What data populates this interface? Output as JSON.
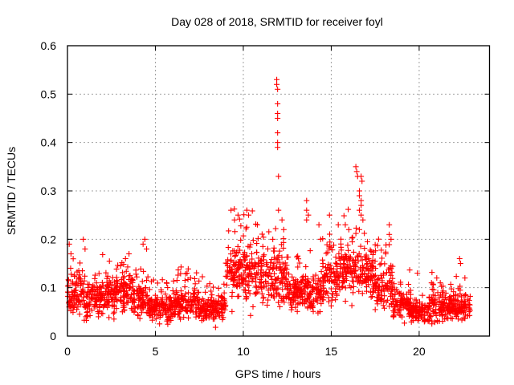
{
  "chart_data": {
    "type": "scatter",
    "title": "Day 028 of 2018, SRMTID for receiver foyl",
    "xlabel": "GPS time / hours",
    "ylabel": "SRMTID / TECUs",
    "xlim": [
      0,
      24
    ],
    "ylim": [
      0,
      0.6
    ],
    "xticks": [
      0,
      5,
      10,
      15,
      20
    ],
    "xtick_labels": [
      "0",
      "5",
      "10",
      "15",
      "20"
    ],
    "yticks": [
      0,
      0.1,
      0.2,
      0.3,
      0.4,
      0.5,
      0.6
    ],
    "ytick_labels": [
      "0",
      "0.1",
      "0.2",
      "0.3",
      "0.4",
      "0.5",
      "0.6"
    ],
    "grid": true,
    "marker": "+",
    "series": [
      {
        "name": "SRMTID",
        "color": "#ff0000",
        "x_range": [
          0,
          22.9
        ],
        "segments": [
          {
            "from": 0.0,
            "to": 1.0,
            "median": 0.085,
            "spread": 0.04
          },
          {
            "from": 1.0,
            "to": 2.0,
            "median": 0.075,
            "spread": 0.035
          },
          {
            "from": 2.0,
            "to": 3.0,
            "median": 0.085,
            "spread": 0.035
          },
          {
            "from": 3.0,
            "to": 4.0,
            "median": 0.09,
            "spread": 0.035
          },
          {
            "from": 4.0,
            "to": 4.6,
            "median": 0.075,
            "spread": 0.03
          },
          {
            "from": 4.6,
            "to": 6.0,
            "median": 0.06,
            "spread": 0.025
          },
          {
            "from": 6.0,
            "to": 7.5,
            "median": 0.07,
            "spread": 0.03
          },
          {
            "from": 7.5,
            "to": 9.0,
            "median": 0.06,
            "spread": 0.025
          },
          {
            "from": 9.0,
            "to": 10.0,
            "median": 0.13,
            "spread": 0.05
          },
          {
            "from": 10.0,
            "to": 11.0,
            "median": 0.13,
            "spread": 0.05
          },
          {
            "from": 11.0,
            "to": 12.5,
            "median": 0.12,
            "spread": 0.05
          },
          {
            "from": 12.5,
            "to": 13.5,
            "median": 0.09,
            "spread": 0.035
          },
          {
            "from": 13.5,
            "to": 14.5,
            "median": 0.09,
            "spread": 0.035
          },
          {
            "from": 14.5,
            "to": 15.5,
            "median": 0.12,
            "spread": 0.045
          },
          {
            "from": 15.5,
            "to": 16.5,
            "median": 0.14,
            "spread": 0.05
          },
          {
            "from": 16.5,
            "to": 17.5,
            "median": 0.13,
            "spread": 0.045
          },
          {
            "from": 17.5,
            "to": 18.5,
            "median": 0.1,
            "spread": 0.04
          },
          {
            "from": 18.5,
            "to": 19.5,
            "median": 0.065,
            "spread": 0.025
          },
          {
            "from": 19.5,
            "to": 20.5,
            "median": 0.05,
            "spread": 0.02
          },
          {
            "from": 20.5,
            "to": 21.5,
            "median": 0.06,
            "spread": 0.025
          },
          {
            "from": 21.5,
            "to": 22.9,
            "median": 0.06,
            "spread": 0.025
          }
        ],
        "spikes": [
          [
            0.1,
            0.19
          ],
          [
            0.2,
            0.17
          ],
          [
            0.9,
            0.2
          ],
          [
            1.0,
            0.18
          ],
          [
            3.3,
            0.16
          ],
          [
            3.5,
            0.17
          ],
          [
            4.3,
            0.19
          ],
          [
            4.4,
            0.2
          ],
          [
            4.5,
            0.18
          ],
          [
            6.8,
            0.13
          ],
          [
            7.0,
            0.12
          ],
          [
            9.3,
            0.26
          ],
          [
            9.5,
            0.24
          ],
          [
            9.7,
            0.25
          ],
          [
            10.2,
            0.26
          ],
          [
            10.3,
            0.25
          ],
          [
            10.8,
            0.23
          ],
          [
            11.9,
            0.53
          ],
          [
            11.9,
            0.52
          ],
          [
            11.95,
            0.51
          ],
          [
            11.95,
            0.48
          ],
          [
            11.95,
            0.46
          ],
          [
            11.95,
            0.45
          ],
          [
            11.95,
            0.42
          ],
          [
            11.95,
            0.4
          ],
          [
            11.95,
            0.39
          ],
          [
            12.0,
            0.33
          ],
          [
            12.0,
            0.26
          ],
          [
            12.2,
            0.24
          ],
          [
            12.3,
            0.22
          ],
          [
            13.6,
            0.28
          ],
          [
            13.6,
            0.26
          ],
          [
            13.7,
            0.25
          ],
          [
            13.6,
            0.24
          ],
          [
            14.3,
            0.23
          ],
          [
            14.4,
            0.2
          ],
          [
            14.9,
            0.25
          ],
          [
            15.4,
            0.23
          ],
          [
            15.8,
            0.23
          ],
          [
            16.0,
            0.22
          ],
          [
            16.4,
            0.35
          ],
          [
            16.45,
            0.34
          ],
          [
            16.5,
            0.33
          ],
          [
            16.7,
            0.33
          ],
          [
            16.75,
            0.32
          ],
          [
            16.6,
            0.3
          ],
          [
            16.6,
            0.29
          ],
          [
            16.7,
            0.28
          ],
          [
            16.7,
            0.27
          ],
          [
            16.6,
            0.26
          ],
          [
            16.7,
            0.25
          ],
          [
            16.8,
            0.24
          ],
          [
            16.6,
            0.22
          ],
          [
            18.3,
            0.23
          ],
          [
            18.3,
            0.21
          ],
          [
            18.4,
            0.2
          ],
          [
            18.1,
            0.17
          ],
          [
            19.9,
            0.13
          ],
          [
            20.7,
            0.11
          ],
          [
            21.0,
            0.12
          ],
          [
            21.2,
            0.11
          ],
          [
            22.3,
            0.16
          ],
          [
            22.35,
            0.15
          ],
          [
            22.6,
            0.12
          ]
        ]
      }
    ]
  }
}
